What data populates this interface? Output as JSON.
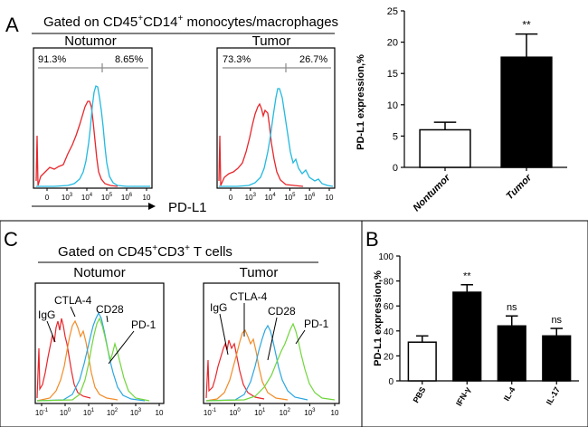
{
  "panel_a": {
    "letter": "A",
    "gating_prefix": "Gated on CD45",
    "gating_sup1": "+",
    "gating_mid": "CD14",
    "gating_sup2": "+",
    "gating_suffix": " monocytes/macrophages",
    "axis_label": "PD-L1",
    "histograms": [
      {
        "title": "Notumor",
        "gate_left": "91.3%",
        "gate_right": "8.65%"
      },
      {
        "title": "Tumor",
        "gate_left": "73.3%",
        "gate_right": "26.7%"
      }
    ],
    "tick_labels": [
      "0",
      "10",
      "10",
      "10",
      "10",
      "10"
    ],
    "tick_exps": [
      "",
      "3",
      "4",
      "5",
      "6",
      ""
    ]
  },
  "panel_c": {
    "letter": "C",
    "gating_prefix": "Gated on CD45",
    "gating_sup1": "+",
    "gating_mid": "CD3",
    "gating_sup2": "+",
    "gating_suffix": " T cells",
    "histograms": [
      {
        "title": "Notumor",
        "labels": [
          "IgG",
          "CTLA-4",
          "CD28",
          "PD-1"
        ]
      },
      {
        "title": "Tumor",
        "labels": [
          "IgG",
          "CTLA-4",
          "CD28",
          "PD-1"
        ]
      }
    ],
    "tick_labels": [
      "10",
      "10",
      "10",
      "10",
      "10",
      "10"
    ],
    "tick_exps": [
      "-1",
      "0",
      "1",
      "2",
      "3",
      ""
    ]
  },
  "panel_b": {
    "letter": "B"
  },
  "colors": {
    "red": "#e8262b",
    "cyan": "#22b9e0",
    "orange": "#f28c28",
    "green": "#6fd63a",
    "blue": "#2aa6e0",
    "bar_black": "#000000"
  },
  "chart_data": [
    {
      "id": "pdl1-tumor",
      "type": "bar",
      "title": "",
      "xlabel": "",
      "ylabel": "PD-L1 expression,%",
      "categories": [
        "Nontumor",
        "Tumor"
      ],
      "values": [
        6,
        17.6
      ],
      "errors": [
        1.2,
        3.7
      ],
      "fills": [
        "white",
        "black"
      ],
      "significance": [
        "",
        "**"
      ],
      "ylim": [
        0,
        25
      ],
      "yticks": [
        0,
        5,
        10,
        15,
        20,
        25
      ]
    },
    {
      "id": "pdl1-cytokines",
      "type": "bar",
      "title": "",
      "xlabel": "",
      "ylabel": "PD-L1 expression,%",
      "categories": [
        "PBS",
        "IFN-γ",
        "IL-4",
        "IL-17"
      ],
      "values": [
        31,
        71,
        44,
        36
      ],
      "errors": [
        5,
        6,
        8,
        6
      ],
      "fills": [
        "white",
        "black",
        "black",
        "black"
      ],
      "significance": [
        "",
        "**",
        "ns",
        "ns"
      ],
      "ylim": [
        0,
        100
      ],
      "yticks": [
        0,
        20,
        40,
        60,
        80,
        100
      ]
    }
  ]
}
